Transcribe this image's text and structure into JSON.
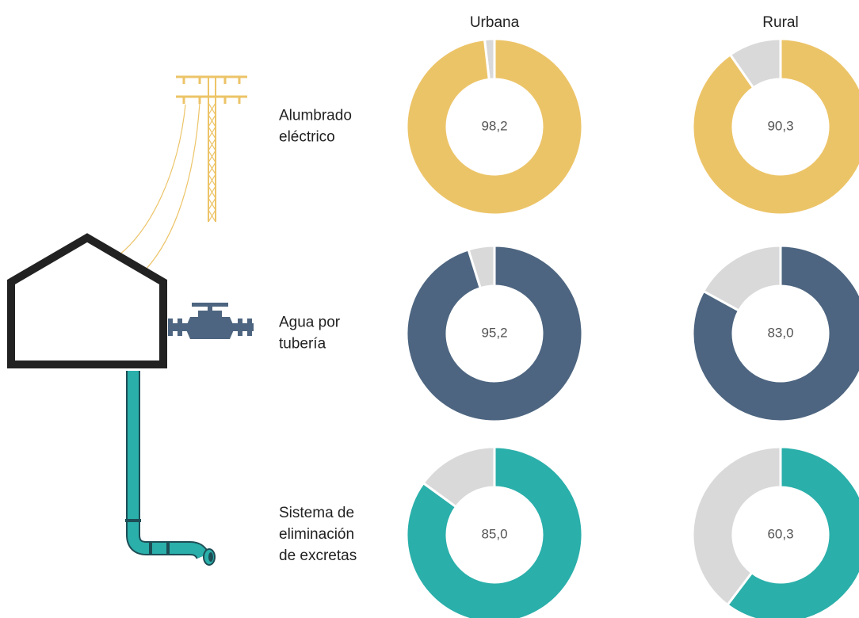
{
  "columns": [
    "Urbana",
    "Rural"
  ],
  "rows": [
    [
      "Alumbrado",
      "eléctrico"
    ],
    [
      "Agua por",
      "tubería"
    ],
    [
      "Sistema de",
      "eliminación",
      "de excretas"
    ]
  ],
  "chart_data": [
    {
      "type": "donut",
      "values": [
        98.2
      ],
      "value_labels": [
        "98,2"
      ],
      "color": "#ecc468",
      "remainder_color": "#d9d9d9"
    },
    {
      "type": "donut",
      "values": [
        90.3
      ],
      "value_labels": [
        "90,3"
      ],
      "color": "#ecc468",
      "remainder_color": "#d9d9d9"
    },
    {
      "type": "donut",
      "values": [
        95.2
      ],
      "value_labels": [
        "95,2"
      ],
      "color": "#4d6580",
      "remainder_color": "#d9d9d9"
    },
    {
      "type": "donut",
      "values": [
        83.0
      ],
      "value_labels": [
        "83,0"
      ],
      "color": "#4d6580",
      "remainder_color": "#d9d9d9"
    },
    {
      "type": "donut",
      "values": [
        85.0
      ],
      "value_labels": [
        "85,0"
      ],
      "color": "#2aafaa",
      "remainder_color": "#d9d9d9"
    },
    {
      "type": "donut",
      "values": [
        60.3
      ],
      "value_labels": [
        "60,3"
      ],
      "color": "#2aafaa",
      "remainder_color": "#d9d9d9"
    }
  ]
}
